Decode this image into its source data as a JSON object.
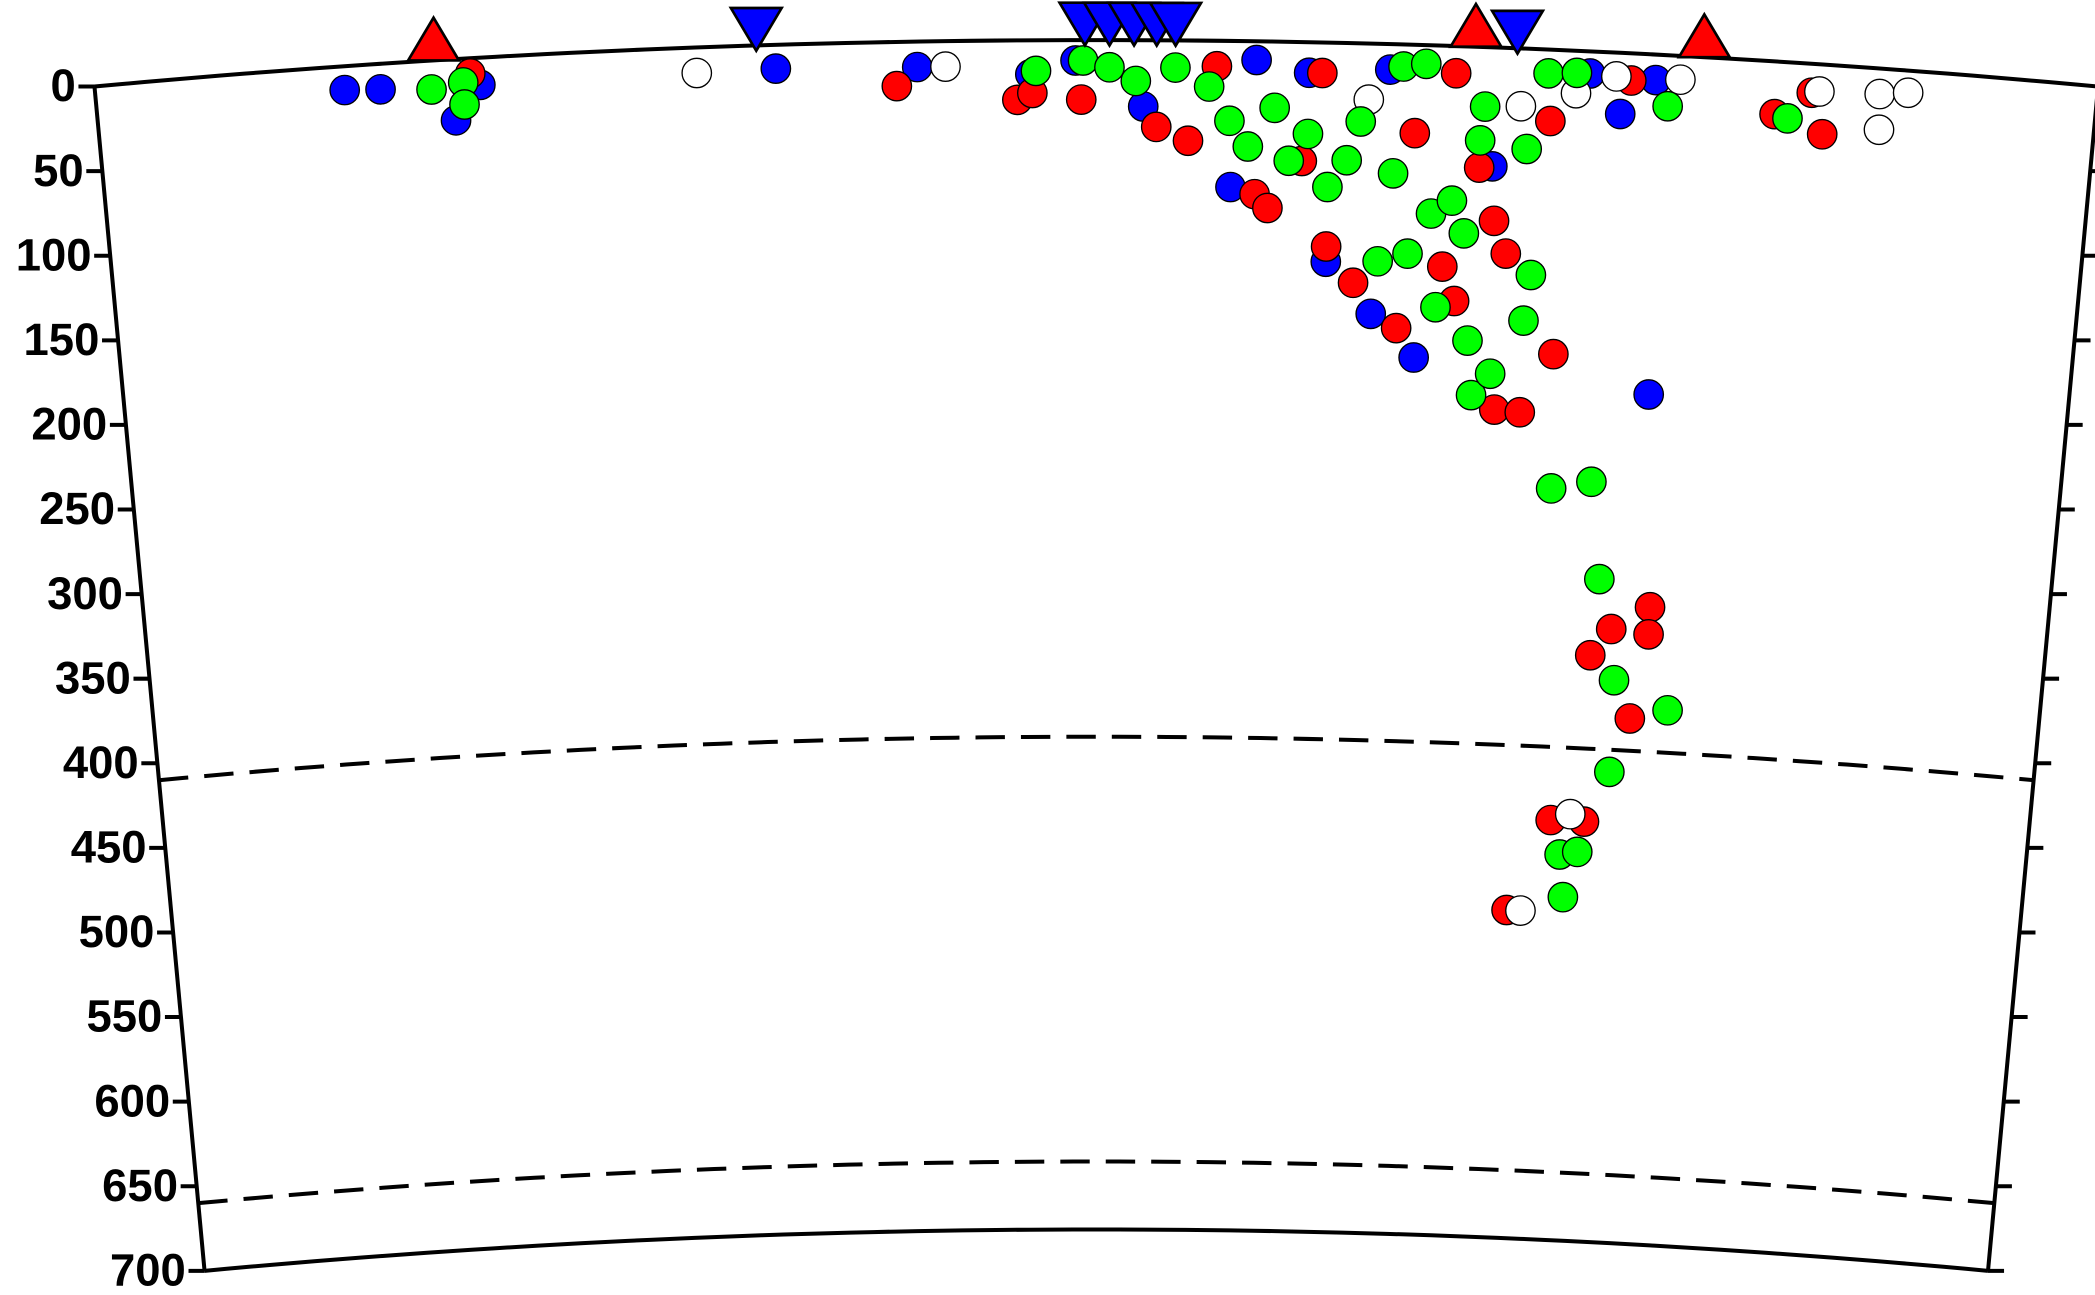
{
  "chart_data": {
    "type": "scatter",
    "xlim": [
      0,
      10.62
    ],
    "ylim": [
      0,
      700
    ],
    "y_inverted": true,
    "yticks": [
      0,
      50,
      100,
      150,
      200,
      250,
      300,
      350,
      400,
      450,
      500,
      550,
      600,
      650,
      700
    ],
    "dashed_depths": [
      410,
      660
    ],
    "series": [
      {
        "color": "#0000ff",
        "x": [
          1.32,
          1.51,
          1.9,
          2.04,
          3.61,
          4.36,
          4.96,
          5.2,
          6.16,
          6.44,
          6.87,
          7.93,
          8.1,
          8.28,
          8.33,
          6.03,
          6.55,
          6.8,
          7.04,
          7.43,
          5.56
        ],
        "values": [
          14,
          15,
          36,
          16,
          14,
          15,
          20,
          12,
          11,
          18,
          15,
          13,
          36,
          15,
          200,
          86,
          129,
          159,
          184,
          70,
          39
        ]
      },
      {
        "color": "#ff0000",
        "x": [
          1.99,
          4.25,
          4.89,
          4.97,
          5.23,
          5.63,
          5.8,
          5.95,
          6.16,
          6.23,
          6.41,
          6.51,
          6.55,
          6.7,
          6.94,
          7.01,
          7.22,
          7.18,
          7.25,
          7.36,
          7.45,
          7.52,
          7.49,
          7.63,
          7.8,
          7.73,
          8.15,
          8.92,
          9.11,
          9.18,
          8.4,
          8.19,
          8.08,
          8.4,
          8.32,
          7.9,
          8.09,
          7.67
        ],
        "values": [
          9,
          26,
          35,
          31,
          35,
          51,
          59,
          15,
          90,
          98,
          70,
          18,
          120,
          141,
          167,
          52,
          16,
          130,
          150,
          71,
          102,
          121,
          213,
          214,
          179,
          42,
          16,
          31,
          17,
          41,
          325,
          339,
          355,
          341,
          391,
          453,
          453,
          507
        ]
      },
      {
        "color": "#ffffff",
        "x": [
          3.19,
          4.51,
          6.76,
          7.57,
          7.86,
          8.07,
          8.41,
          9.15,
          9.47,
          9.48,
          9.62,
          8.01,
          7.75
        ],
        "values": [
          15,
          15,
          33,
          34,
          25,
          14,
          14,
          16,
          15,
          36,
          13,
          449,
          507
        ]
      },
      {
        "color": "#00ff00",
        "x": [
          1.78,
          1.95,
          1.95,
          4.99,
          5.24,
          5.38,
          5.52,
          5.73,
          5.91,
          6.02,
          6.12,
          6.26,
          6.34,
          6.44,
          6.55,
          6.65,
          6.72,
          6.83,
          6.9,
          6.94,
          6.99,
          7.06,
          7.11,
          7.15,
          7.22,
          7.29,
          7.33,
          7.36,
          7.36,
          7.38,
          7.46,
          7.63,
          7.66,
          7.61,
          7.71,
          7.86,
          8.35,
          8.99,
          7.82,
          8.04,
          8.11,
          8.22,
          8.53,
          8.22,
          7.96,
          8.06,
          7.99
        ],
        "values": [
          17,
          14,
          27,
          18,
          12,
          16,
          24,
          16,
          27,
          47,
          62,
          39,
          70,
          54,
          85,
          69,
          46,
          128,
          76,
          13,
          123,
          11,
          99,
          154,
          91,
          110,
          173,
          205,
          55,
          35,
          192,
          160,
          133,
          59,
          14,
          13,
          30,
          33,
          258,
          253,
          310,
          369,
          385,
          423,
          473,
          471,
          498
        ]
      }
    ],
    "markers": [
      {
        "shape": "triangle-up",
        "color": "#ff0000",
        "x": [
          1.8,
          7.32,
          8.53
        ]
      },
      {
        "shape": "triangle-down",
        "color": "#0000ff",
        "x": [
          3.51,
          5.25,
          5.38,
          5.51,
          5.63,
          5.73,
          7.54
        ]
      }
    ]
  }
}
